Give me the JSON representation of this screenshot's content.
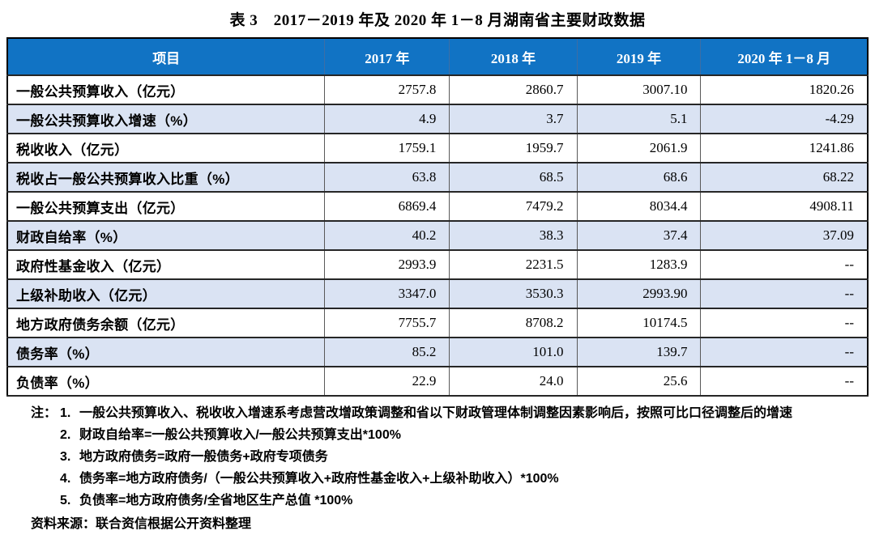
{
  "title": "表 3　2017－2019 年及 2020 年 1－8 月湖南省主要财政数据",
  "table": {
    "columns": [
      "项目",
      "2017 年",
      "2018 年",
      "2019 年",
      "2020 年 1－8 月"
    ],
    "rows": [
      {
        "label": "一般公共预算收入（亿元）",
        "values": [
          "2757.8",
          "2860.7",
          "3007.10",
          "1820.26"
        ]
      },
      {
        "label": "一般公共预算收入增速（%）",
        "values": [
          "4.9",
          "3.7",
          "5.1",
          "-4.29"
        ]
      },
      {
        "label": "税收收入（亿元）",
        "values": [
          "1759.1",
          "1959.7",
          "2061.9",
          "1241.86"
        ]
      },
      {
        "label": "税收占一般公共预算收入比重（%）",
        "values": [
          "63.8",
          "68.5",
          "68.6",
          "68.22"
        ]
      },
      {
        "label": "一般公共预算支出（亿元）",
        "values": [
          "6869.4",
          "7479.2",
          "8034.4",
          "4908.11"
        ]
      },
      {
        "label": "财政自给率（%）",
        "values": [
          "40.2",
          "38.3",
          "37.4",
          "37.09"
        ]
      },
      {
        "label": "政府性基金收入（亿元）",
        "values": [
          "2993.9",
          "2231.5",
          "1283.9",
          "--"
        ]
      },
      {
        "label": "上级补助收入（亿元）",
        "values": [
          "3347.0",
          "3530.3",
          "2993.90",
          "--"
        ]
      },
      {
        "label": "地方政府债务余额（亿元）",
        "values": [
          "7755.7",
          "8708.2",
          "10174.5",
          "--"
        ]
      },
      {
        "label": "债务率（%）",
        "values": [
          "85.2",
          "101.0",
          "139.7",
          "--"
        ]
      },
      {
        "label": "负债率（%）",
        "values": [
          "22.9",
          "24.0",
          "25.6",
          "--"
        ]
      }
    ]
  },
  "notes": {
    "label": "注：",
    "items": [
      {
        "num": "1.",
        "text": "一般公共预算收入、税收收入增速系考虑营改增政策调整和省以下财政管理体制调整因素影响后，按照可比口径调整后的增速"
      },
      {
        "num": "2.",
        "text": "财政自给率=一般公共预算收入/一般公共预算支出*100%"
      },
      {
        "num": "3.",
        "text": "地方政府债务=政府一般债务+政府专项债务"
      },
      {
        "num": "4.",
        "text": "债务率=地方政府债务/（一般公共预算收入+政府性基金收入+上级补助收入）*100%"
      },
      {
        "num": "5.",
        "text": "负债率=地方政府债务/全省地区生产总值 *100%"
      }
    ]
  },
  "source": "资料来源：联合资信根据公开资料整理",
  "colors": {
    "header_bg": "#1173C4",
    "header_text": "#FFFFFF",
    "row_alt_bg": "#DAE3F3",
    "border_dark": "#262626",
    "outer_border": "#000000"
  }
}
